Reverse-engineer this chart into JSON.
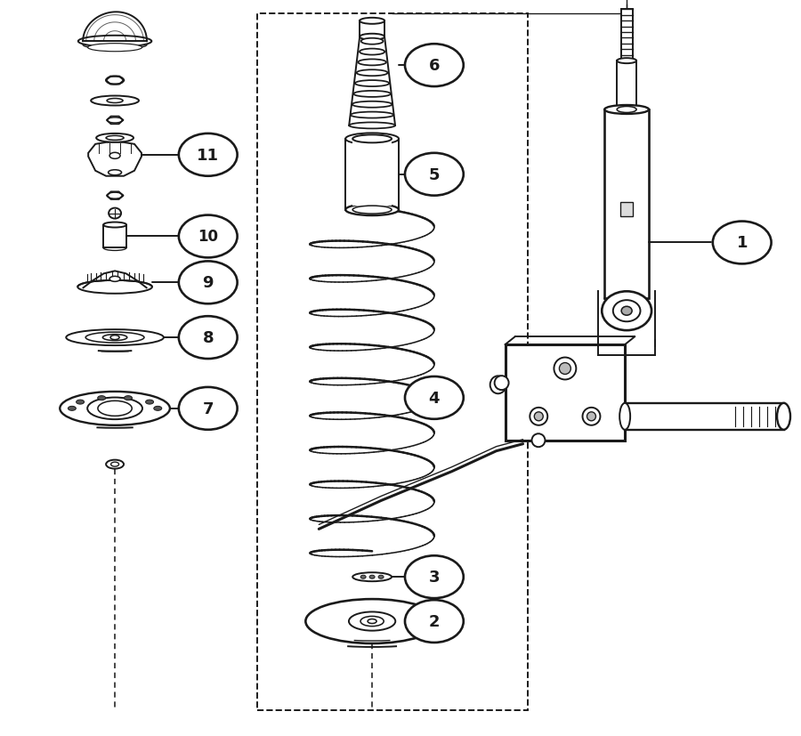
{
  "bg_color": "#ffffff",
  "line_color": "#1a1a1a",
  "lw": 1.4,
  "figsize": [
    9.0,
    8.28
  ],
  "dpi": 100,
  "label_fontsize": 13
}
